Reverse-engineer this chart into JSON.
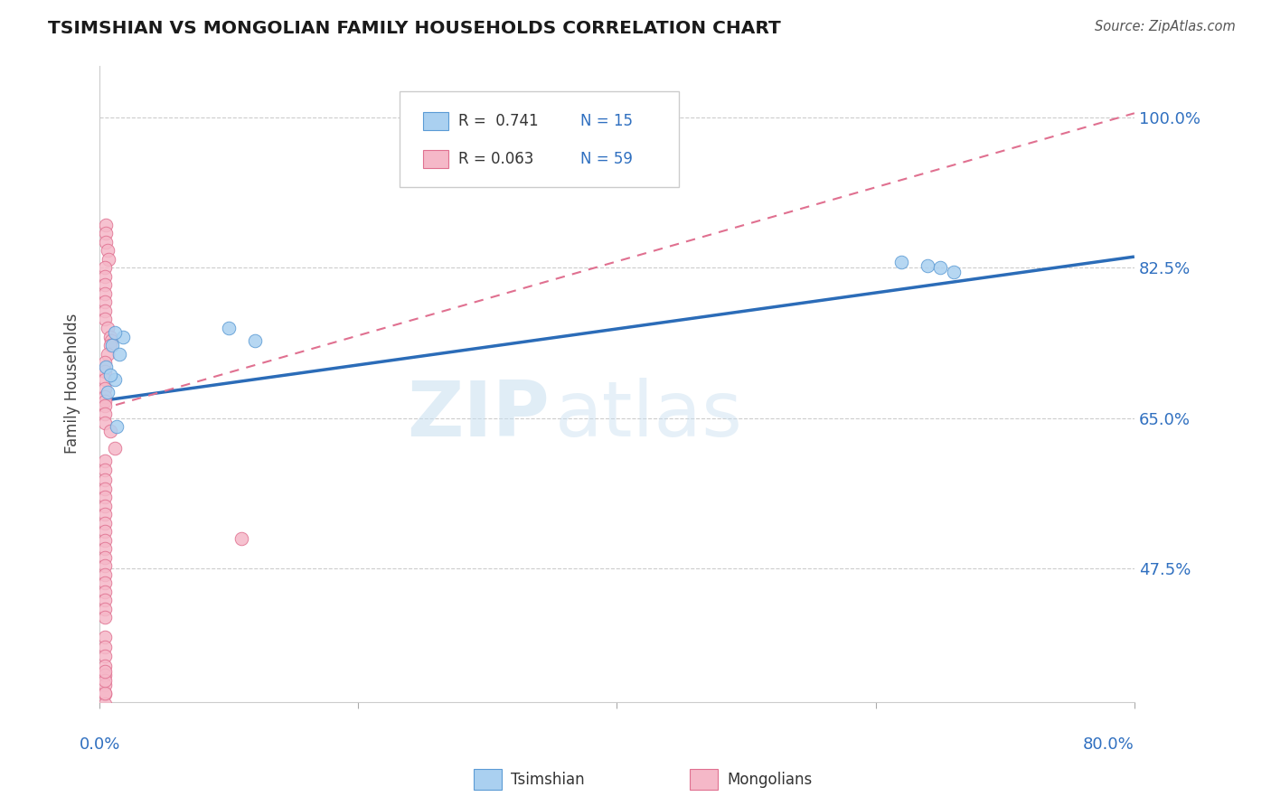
{
  "title": "TSIMSHIAN VS MONGOLIAN FAMILY HOUSEHOLDS CORRELATION CHART",
  "source": "Source: ZipAtlas.com",
  "ylabel": "Family Households",
  "yticks_labels": [
    "47.5%",
    "65.0%",
    "82.5%",
    "100.0%"
  ],
  "ytick_values": [
    0.475,
    0.65,
    0.825,
    1.0
  ],
  "xlim": [
    0.0,
    0.8
  ],
  "ylim": [
    0.32,
    1.06
  ],
  "legend_r1": "R =  0.741",
  "legend_n1": "N = 15",
  "legend_r2": "R = 0.063",
  "legend_n2": "N = 59",
  "watermark_zip": "ZIP",
  "watermark_atlas": "atlas",
  "tsimshian_color": "#aad0f0",
  "mongolian_color": "#f5b8c8",
  "tsimshian_edge_color": "#5b9bd5",
  "mongolian_edge_color": "#e07090",
  "tsimshian_line_color": "#2b6cb8",
  "mongolian_line_color": "#e07090",
  "tsimshian_x": [
    0.005,
    0.01,
    0.012,
    0.015,
    0.018,
    0.006,
    0.008,
    0.62,
    0.64,
    0.012,
    0.1,
    0.12,
    0.013,
    0.65,
    0.66
  ],
  "tsimshian_y": [
    0.71,
    0.735,
    0.695,
    0.725,
    0.745,
    0.68,
    0.7,
    0.832,
    0.828,
    0.75,
    0.755,
    0.74,
    0.64,
    0.825,
    0.82
  ],
  "mongolian_x": [
    0.005,
    0.005,
    0.005,
    0.006,
    0.007,
    0.004,
    0.004,
    0.004,
    0.004,
    0.004,
    0.004,
    0.004,
    0.006,
    0.008,
    0.009,
    0.008,
    0.006,
    0.004,
    0.004,
    0.004,
    0.004,
    0.004,
    0.004,
    0.004,
    0.004,
    0.004,
    0.008,
    0.012,
    0.004,
    0.004,
    0.004,
    0.004,
    0.004,
    0.004,
    0.004,
    0.004,
    0.004,
    0.004,
    0.004,
    0.004,
    0.004,
    0.004,
    0.004,
    0.004,
    0.004,
    0.004,
    0.004,
    0.11,
    0.004,
    0.004,
    0.004,
    0.004,
    0.004,
    0.004,
    0.004,
    0.004,
    0.004,
    0.004,
    0.004
  ],
  "mongolian_y": [
    0.875,
    0.865,
    0.855,
    0.845,
    0.835,
    0.825,
    0.815,
    0.805,
    0.795,
    0.785,
    0.775,
    0.765,
    0.755,
    0.745,
    0.74,
    0.735,
    0.725,
    0.715,
    0.705,
    0.695,
    0.685,
    0.675,
    0.67,
    0.665,
    0.655,
    0.645,
    0.635,
    0.615,
    0.6,
    0.59,
    0.578,
    0.568,
    0.558,
    0.548,
    0.538,
    0.528,
    0.518,
    0.508,
    0.498,
    0.488,
    0.478,
    0.468,
    0.458,
    0.448,
    0.438,
    0.428,
    0.418,
    0.51,
    0.395,
    0.384,
    0.373,
    0.362,
    0.351,
    0.34,
    0.329,
    0.318,
    0.33,
    0.345,
    0.355
  ],
  "ts_line_x": [
    0.0,
    0.8
  ],
  "ts_line_y": [
    0.67,
    0.838
  ],
  "mon_line_x": [
    0.0,
    0.8
  ],
  "mon_line_y": [
    0.66,
    1.005
  ]
}
